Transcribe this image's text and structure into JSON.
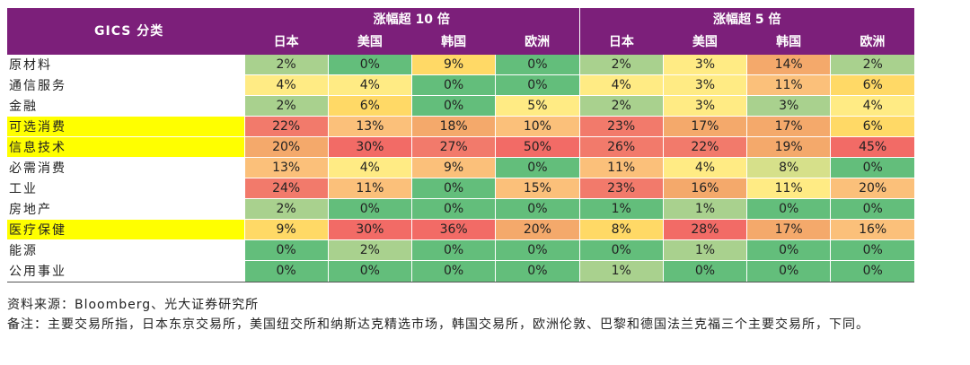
{
  "header": {
    "gics_label": "GICS 分类",
    "groups": [
      {
        "label": "涨幅超 10 倍",
        "markets": [
          "日本",
          "美国",
          "韩国",
          "欧洲"
        ]
      },
      {
        "label": "涨幅超 5 倍",
        "markets": [
          "日本",
          "美国",
          "韩国",
          "欧洲"
        ]
      }
    ]
  },
  "rows": [
    {
      "sector": "原材料",
      "highlight": false,
      "values": [
        "2%",
        "0%",
        "9%",
        "0%",
        "2%",
        "3%",
        "14%",
        "2%"
      ],
      "colors": [
        "#a9d18e",
        "#63be7b",
        "#ffd966",
        "#63be7b",
        "#a9d18e",
        "#ffeb84",
        "#f4a96b",
        "#a9d18e"
      ]
    },
    {
      "sector": "通信服务",
      "highlight": false,
      "values": [
        "4%",
        "4%",
        "0%",
        "0%",
        "4%",
        "3%",
        "11%",
        "6%"
      ],
      "colors": [
        "#ffeb84",
        "#ffeb84",
        "#63be7b",
        "#63be7b",
        "#ffeb84",
        "#ffeb84",
        "#fbc07a",
        "#ffd966"
      ]
    },
    {
      "sector": "金融",
      "highlight": false,
      "values": [
        "2%",
        "6%",
        "0%",
        "5%",
        "2%",
        "3%",
        "3%",
        "4%"
      ],
      "colors": [
        "#a9d18e",
        "#ffd966",
        "#63be7b",
        "#ffeb84",
        "#a9d18e",
        "#ffeb84",
        "#a9d18e",
        "#ffeb84"
      ]
    },
    {
      "sector": "可选消费",
      "highlight": true,
      "values": [
        "22%",
        "13%",
        "18%",
        "10%",
        "23%",
        "17%",
        "17%",
        "6%"
      ],
      "colors": [
        "#f27a6b",
        "#fbc07a",
        "#f4a96b",
        "#fbc07a",
        "#f27a6b",
        "#f4a96b",
        "#f4a96b",
        "#ffd966"
      ]
    },
    {
      "sector": "信息技术",
      "highlight": true,
      "values": [
        "20%",
        "30%",
        "27%",
        "50%",
        "26%",
        "22%",
        "19%",
        "45%"
      ],
      "colors": [
        "#f4a96b",
        "#f26b66",
        "#f27a6b",
        "#f26b66",
        "#f27a6b",
        "#f27a6b",
        "#f4a96b",
        "#f26b66"
      ]
    },
    {
      "sector": "必需消费",
      "highlight": false,
      "values": [
        "13%",
        "4%",
        "9%",
        "0%",
        "11%",
        "4%",
        "8%",
        "0%"
      ],
      "colors": [
        "#fbc07a",
        "#ffeb84",
        "#fbc07a",
        "#63be7b",
        "#fbc07a",
        "#ffeb84",
        "#d6e08a",
        "#63be7b"
      ]
    },
    {
      "sector": "工业",
      "highlight": false,
      "values": [
        "24%",
        "11%",
        "0%",
        "15%",
        "23%",
        "16%",
        "11%",
        "20%"
      ],
      "colors": [
        "#f27a6b",
        "#fbc07a",
        "#63be7b",
        "#fbc07a",
        "#f27a6b",
        "#f4a96b",
        "#ffeb84",
        "#fbc07a"
      ]
    },
    {
      "sector": "房地产",
      "highlight": false,
      "values": [
        "2%",
        "0%",
        "0%",
        "0%",
        "1%",
        "1%",
        "0%",
        "0%"
      ],
      "colors": [
        "#a9d18e",
        "#63be7b",
        "#63be7b",
        "#63be7b",
        "#63be7b",
        "#a9d18e",
        "#63be7b",
        "#63be7b"
      ]
    },
    {
      "sector": "医疗保健",
      "highlight": true,
      "values": [
        "9%",
        "30%",
        "36%",
        "20%",
        "8%",
        "28%",
        "17%",
        "16%"
      ],
      "colors": [
        "#ffd966",
        "#f26b66",
        "#f26b66",
        "#f4a96b",
        "#ffd966",
        "#f26b66",
        "#f4a96b",
        "#fbc07a"
      ]
    },
    {
      "sector": "能源",
      "highlight": false,
      "values": [
        "0%",
        "2%",
        "0%",
        "0%",
        "0%",
        "1%",
        "0%",
        "0%"
      ],
      "colors": [
        "#63be7b",
        "#a9d18e",
        "#63be7b",
        "#63be7b",
        "#63be7b",
        "#a9d18e",
        "#63be7b",
        "#63be7b"
      ]
    },
    {
      "sector": "公用事业",
      "highlight": false,
      "values": [
        "0%",
        "0%",
        "0%",
        "0%",
        "1%",
        "0%",
        "0%",
        "0%"
      ],
      "colors": [
        "#63be7b",
        "#63be7b",
        "#63be7b",
        "#63be7b",
        "#a9d18e",
        "#63be7b",
        "#63be7b",
        "#63be7b"
      ]
    }
  ],
  "notes": {
    "source": "资料来源：Bloomberg、光大证券研究所",
    "remark": "备注：主要交易所指，日本东京交易所，美国纽交所和纳斯达克精选市场，韩国交易所，欧洲伦敦、巴黎和德国法兰克福三个主要交易所，下同。"
  },
  "colors": {
    "header_bg": "#7c1f7a",
    "highlight": "#ffff00"
  }
}
